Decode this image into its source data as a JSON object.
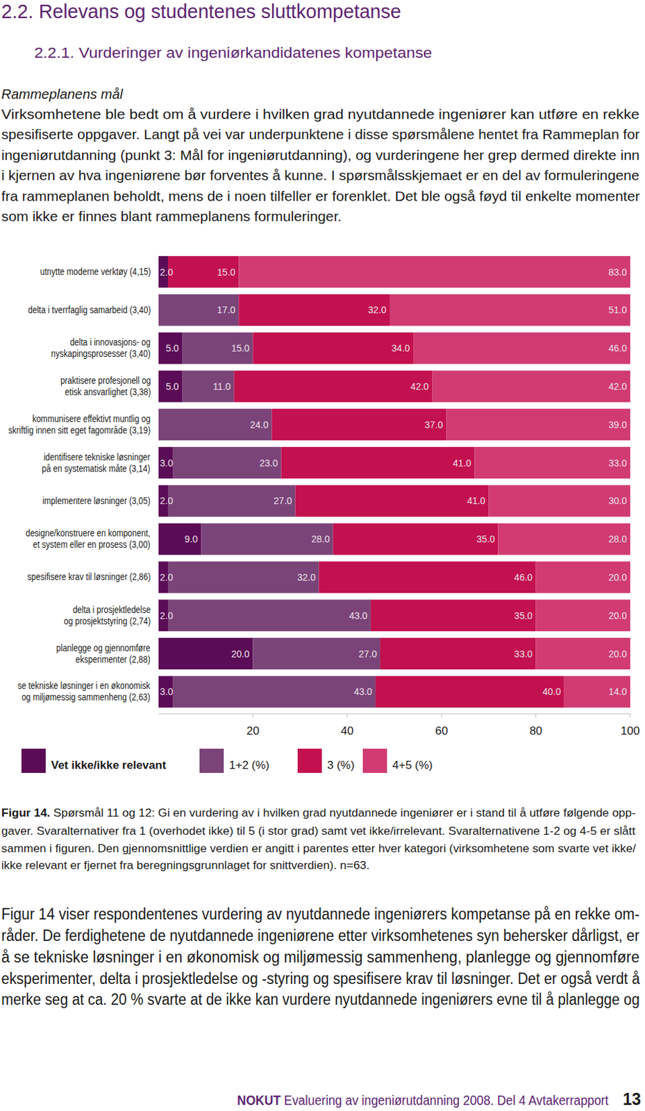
{
  "header": {
    "title": "2.2. Relevans og studentenes sluttkompetanse",
    "subtitle": "2.2.1. Vurderinger av ingeniørkandidatenes kompetanse"
  },
  "intro": {
    "heading": "Rammeplanens mål",
    "lines": [
      "Virksomhetene ble bedt om å vurdere i hvilken grad nyutdannede ingeniører kan utføre en rekke",
      "spesifiserte oppgaver. Langt på vei var underpunktene i disse spørsmålene hentet fra Rammeplan for",
      "ingeniørutdanning (punkt 3: Mål for ingeniørutdanning), og vurderingene her grep dermed direkte inn",
      "i kjernen av hva ingeniørene bør forventes å kunne. I spørsmålsskjemaet er en del av formuleringene",
      "fra rammeplanen beholdt, mens de i noen tilfeller er forenklet. Det ble også føyd til enkelte momenter",
      "som ikke er finnes blant rammeplanens formuleringer."
    ]
  },
  "chart_data": {
    "type": "bar",
    "orientation": "horizontal",
    "stacked": true,
    "data_labels": true,
    "grid": false,
    "legend": "bottom",
    "categories": [
      "utnytte moderne verktøy (4,15)",
      "delta i tverrfaglig samarbeid (3,40)",
      "delta i innovasjons- og\nnyskapingsprosesser (3,40)",
      "praktisere profesjonell og\netisk ansvarlighet (3,38)",
      "kommunisere effektivt muntlig og\nskriftlig innen sitt eget fagområde (3,19)",
      "identifisere tekniske løsninger\npå en systematisk måte (3,14)",
      "implementere løsninger (3,05)",
      "designe/konstruere en komponent,\net system eller en prosess (3,00)",
      "spesifisere krav til løsninger (2,86)",
      "delta i prosjektledelse\nog prosjektstyring (2,74)",
      "planlegge og gjennomføre\neksperimenter (2,88)",
      "se tekniske løsninger i en økonomisk\nog miljømessig sammenheng (2,63)"
    ],
    "series": [
      {
        "name": "Vet ikke/ikke relevant",
        "color": "#5b0c56",
        "values": [
          2,
          0,
          5,
          5,
          0,
          3,
          2,
          9,
          2,
          2,
          20,
          3
        ],
        "value_labels": [
          "2.0",
          null,
          "5.0",
          "5.0",
          null,
          "3.0",
          "2.0",
          "9.0",
          "2.0",
          "2.0",
          "20.0",
          "3.0"
        ]
      },
      {
        "name": "1+2 (%)",
        "color": "#7b4479",
        "values": [
          0,
          17,
          15,
          11,
          24,
          23,
          27,
          28,
          32,
          43,
          27,
          43
        ],
        "value_labels": [
          null,
          "17.0",
          "15.0",
          "11.0",
          "24.0",
          "23.0",
          "27.0",
          "28.0",
          "32.0",
          "43.0",
          "27.0",
          "43.0"
        ]
      },
      {
        "name": "3 (%)",
        "color": "#c3104f",
        "values": [
          15,
          32,
          34,
          42,
          37,
          41,
          41,
          35,
          46,
          35,
          33,
          40
        ],
        "value_labels": [
          "15.0",
          "32.0",
          "34.0",
          "42.0",
          "37.0",
          "41.0",
          "41.0",
          "35.0",
          "46.0",
          "35.0",
          "33.0",
          "40.0"
        ]
      },
      {
        "name": "4+5 (%)",
        "color": "#d13b72",
        "values": [
          83,
          51,
          46,
          42,
          39,
          33,
          30,
          28,
          20,
          20,
          20,
          14
        ],
        "value_labels": [
          "83.0",
          "51.0",
          "46.0",
          "42.0",
          "39.0",
          "33.0",
          "30.0",
          "28.0",
          "20.0",
          "20.0",
          "20.0",
          "14.0"
        ]
      }
    ],
    "xlim": [
      0,
      100
    ],
    "xticks": [
      20,
      40,
      60,
      80,
      100
    ]
  },
  "caption": {
    "label": "Figur 14.",
    "lines": [
      " Spørsmål 11 og 12: Gi en vurdering av i hvilken grad nyutdannede ingeniører er i stand til å utføre følgende opp-",
      "gaver. Svaralternativer fra 1 (overhodet ikke) til 5 (i stor grad) samt vet ikke/irrelevant. Svaralternativene 1-2 og 4-5 er slått",
      "sammen i figuren. Den gjennomsnittlige verdien er angitt i parentes etter hver kategori (virksomhetene som svarte vet ikke/",
      "ikke relevant er fjernet fra beregningsgrunnlaget for snittverdien). n=63."
    ]
  },
  "body": {
    "lines": [
      "Figur 14 viser respondentenes vurdering av nyutdannede ingeniørers kompetanse på en rekke om-",
      "råder. De ferdighetene de nyutdannede ingeniørene etter virksomhetenes syn behersker dårligst, er",
      "å se tekniske løsninger i en økonomisk og miljømessig sammenheng, planlegge og gjennomføre",
      "eksperimenter, delta i prosjektledelse og -styring og spesifisere krav til løsninger. Det er også verdt å",
      "merke seg at ca. 20 % svarte at de ikke kan vurdere nyutdannede ingeniørers evne til å planlegge og"
    ]
  },
  "footer": {
    "brand": "NOKUT",
    "text": "Evaluering av ingeniørutdanning 2008. Del 4 Avtakerrapport",
    "page": 13
  }
}
